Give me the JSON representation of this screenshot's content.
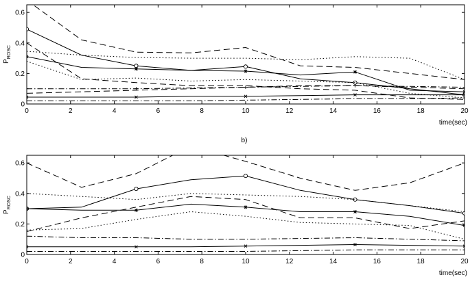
{
  "figure": {
    "panel_b_label": "b)"
  },
  "chart_data": [
    {
      "type": "line",
      "title": "",
      "xlabel": "time(sec)",
      "ylabel_main": "P",
      "ylabel_sub": "ROSC",
      "xlim": [
        0,
        20
      ],
      "ylim": [
        0,
        0.65
      ],
      "xticks": [
        "0",
        "2",
        "4",
        "6",
        "8",
        "10",
        "12",
        "14",
        "16",
        "18",
        "20"
      ],
      "yticks": [
        "0",
        "0.2",
        "0.4",
        "0.6"
      ],
      "ytick_values": [
        0,
        0.2,
        0.4,
        0.6
      ],
      "grid": false,
      "series": [
        {
          "style": "solid",
          "marker": "o",
          "x": [
            0,
            2.5,
            5,
            7.5,
            10,
            12.5,
            15,
            17.5,
            20
          ],
          "y": [
            0.49,
            0.32,
            0.25,
            0.22,
            0.245,
            0.165,
            0.14,
            0.1,
            0.06
          ]
        },
        {
          "style": "dashed",
          "marker": "",
          "x": [
            0,
            2.5,
            5,
            7.5,
            10,
            12.5,
            15,
            17.5,
            20
          ],
          "y": [
            0.68,
            0.42,
            0.34,
            0.335,
            0.37,
            0.25,
            0.24,
            0.2,
            0.16
          ]
        },
        {
          "style": "dashed",
          "marker": "",
          "x": [
            0,
            2.5,
            5,
            7.5,
            10,
            12.5,
            15,
            17.5,
            20
          ],
          "y": [
            0.4,
            0.165,
            0.14,
            0.12,
            0.12,
            0.1,
            0.09,
            0.04,
            0.03
          ]
        },
        {
          "style": "solid",
          "marker": "*",
          "x": [
            0,
            2.5,
            5,
            7.5,
            10,
            12.5,
            15,
            17.5,
            20
          ],
          "y": [
            0.31,
            0.24,
            0.23,
            0.22,
            0.215,
            0.19,
            0.21,
            0.09,
            0.08
          ]
        },
        {
          "style": "dotted",
          "marker": "",
          "x": [
            0,
            2.5,
            5,
            7.5,
            10,
            12.5,
            15,
            17.5,
            20
          ],
          "y": [
            0.345,
            0.32,
            0.305,
            0.3,
            0.3,
            0.29,
            0.31,
            0.3,
            0.16
          ]
        },
        {
          "style": "dotted",
          "marker": "",
          "x": [
            0,
            2.5,
            5,
            7.5,
            10,
            12.5,
            15,
            17.5,
            20
          ],
          "y": [
            0.28,
            0.16,
            0.17,
            0.15,
            0.16,
            0.15,
            0.14,
            0.07,
            0.04
          ]
        },
        {
          "style": "dashdot",
          "marker": "+",
          "x": [
            0,
            2.5,
            5,
            7.5,
            10,
            12.5,
            15,
            17.5,
            20
          ],
          "y": [
            0.1,
            0.1,
            0.1,
            0.105,
            0.11,
            0.115,
            0.12,
            0.115,
            0.11
          ]
        },
        {
          "style": "dashed",
          "marker": "",
          "x": [
            0,
            2.5,
            5,
            7.5,
            10,
            12.5,
            15,
            17.5,
            20
          ],
          "y": [
            0.07,
            0.08,
            0.09,
            0.1,
            0.11,
            0.12,
            0.12,
            0.11,
            0.1
          ]
        },
        {
          "style": "solid",
          "marker": "x",
          "x": [
            0,
            2.5,
            5,
            7.5,
            10,
            12.5,
            15,
            17.5,
            20
          ],
          "y": [
            0.045,
            0.045,
            0.045,
            0.05,
            0.05,
            0.055,
            0.06,
            0.06,
            0.06
          ]
        },
        {
          "style": "dashdot",
          "marker": "",
          "x": [
            0,
            2.5,
            5,
            7.5,
            10,
            12.5,
            15,
            17.5,
            20
          ],
          "y": [
            0.02,
            0.02,
            0.02,
            0.02,
            0.025,
            0.03,
            0.035,
            0.035,
            0.04
          ]
        }
      ]
    },
    {
      "type": "line",
      "title": "",
      "xlabel": "time(sec)",
      "ylabel_main": "P",
      "ylabel_sub": "ROSC",
      "xlim": [
        0,
        20
      ],
      "ylim": [
        0,
        0.65
      ],
      "xticks": [
        "0",
        "2",
        "4",
        "6",
        "8",
        "10",
        "12",
        "14",
        "16",
        "18",
        "20"
      ],
      "yticks": [
        "0",
        "0.2",
        "0.4",
        "0.6"
      ],
      "ytick_values": [
        0,
        0.2,
        0.4,
        0.6
      ],
      "grid": false,
      "series": [
        {
          "style": "dashed",
          "marker": "",
          "x": [
            0,
            2.5,
            5,
            7.5,
            10,
            12.5,
            15,
            17.5,
            20
          ],
          "y": [
            0.6,
            0.44,
            0.53,
            0.71,
            0.61,
            0.5,
            0.42,
            0.47,
            0.6
          ]
        },
        {
          "style": "solid",
          "marker": "o",
          "x": [
            0,
            2.5,
            5,
            7.5,
            10,
            12.5,
            15,
            17.5,
            20
          ],
          "y": [
            0.3,
            0.31,
            0.43,
            0.49,
            0.515,
            0.42,
            0.36,
            0.32,
            0.27
          ]
        },
        {
          "style": "dotted",
          "marker": "",
          "x": [
            0,
            2.5,
            5,
            7.5,
            10,
            12.5,
            15,
            17.5,
            20
          ],
          "y": [
            0.4,
            0.38,
            0.36,
            0.4,
            0.39,
            0.38,
            0.36,
            0.32,
            0.28
          ]
        },
        {
          "style": "solid",
          "marker": "*",
          "x": [
            0,
            2.5,
            5,
            7.5,
            10,
            12.5,
            15,
            17.5,
            20
          ],
          "y": [
            0.3,
            0.29,
            0.29,
            0.33,
            0.31,
            0.28,
            0.28,
            0.25,
            0.19
          ]
        },
        {
          "style": "dashed",
          "marker": "",
          "x": [
            0,
            2.5,
            5,
            7.5,
            10,
            12.5,
            15,
            17.5,
            20
          ],
          "y": [
            0.15,
            0.24,
            0.31,
            0.38,
            0.36,
            0.24,
            0.24,
            0.17,
            0.22
          ]
        },
        {
          "style": "dotted",
          "marker": "",
          "x": [
            0,
            2.5,
            5,
            7.5,
            10,
            12.5,
            15,
            17.5,
            20
          ],
          "y": [
            0.16,
            0.17,
            0.23,
            0.28,
            0.25,
            0.21,
            0.2,
            0.19,
            0.1
          ]
        },
        {
          "style": "dashdot",
          "marker": "",
          "x": [
            0,
            2.5,
            5,
            7.5,
            10,
            12.5,
            15,
            17.5,
            20
          ],
          "y": [
            0.12,
            0.11,
            0.11,
            0.1,
            0.1,
            0.105,
            0.11,
            0.1,
            0.09
          ]
        },
        {
          "style": "solid",
          "marker": "x",
          "x": [
            0,
            2.5,
            5,
            7.5,
            10,
            12.5,
            15,
            17.5,
            20
          ],
          "y": [
            0.05,
            0.05,
            0.05,
            0.05,
            0.055,
            0.06,
            0.065,
            0.06,
            0.055
          ]
        },
        {
          "style": "dashdot",
          "marker": "",
          "x": [
            0,
            2.5,
            5,
            7.5,
            10,
            12.5,
            15,
            17.5,
            20
          ],
          "y": [
            0.02,
            0.02,
            0.02,
            0.02,
            0.02,
            0.025,
            0.03,
            0.03,
            0.03
          ]
        }
      ]
    }
  ]
}
